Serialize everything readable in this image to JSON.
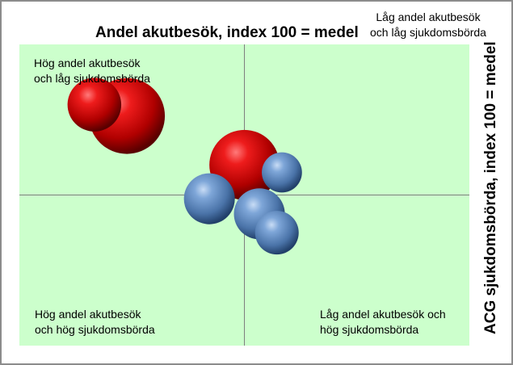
{
  "chart_data": {
    "type": "bubble",
    "xlabel": "Andel akutbesök, index 100 = medel",
    "ylabel": "ACG sjukdomsbörda, index 100 = medel",
    "x_reference": 100,
    "y_reference": 100,
    "xlim": [
      190,
      10
    ],
    "ylim": [
      140,
      60
    ],
    "grid": false,
    "legend": "none",
    "quadrant_labels": {
      "top_left": [
        "Hög andel akutbesök",
        "och låg sjukdomsbörda"
      ],
      "top_right": [
        "Låg andel akutbesök",
        "och låg sjukdomsbörda"
      ],
      "bottom_left": [
        "Hög andel akutbesök",
        "och hög sjukdomsbörda"
      ],
      "bottom_right": [
        "Låg andel akutbesök och",
        "hög sjukdomsbörda"
      ]
    },
    "series": [
      {
        "color": "#cc0000",
        "points": [
          {
            "x": 147,
            "y": 121,
            "size": 1.0
          },
          {
            "x": 160,
            "y": 124,
            "size": 0.5
          },
          {
            "x": 100,
            "y": 108,
            "size": 0.85
          }
        ]
      },
      {
        "color": "#4f81bd",
        "points": [
          {
            "x": 94,
            "y": 95,
            "size": 0.45
          },
          {
            "x": 114,
            "y": 99,
            "size": 0.45
          },
          {
            "x": 87,
            "y": 90,
            "size": 0.33
          },
          {
            "x": 85,
            "y": 106,
            "size": 0.28
          }
        ]
      }
    ]
  }
}
